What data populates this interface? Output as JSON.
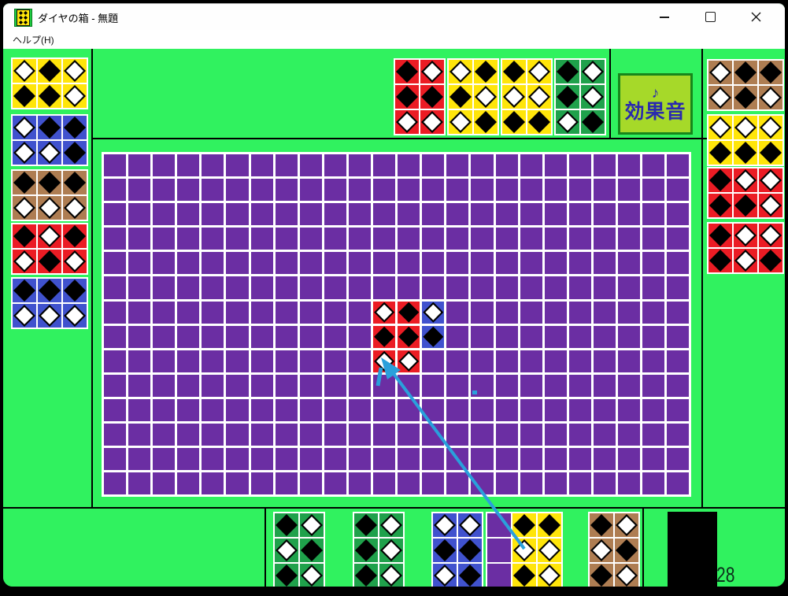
{
  "window": {
    "title": "ダイヤの箱 - 無題",
    "menu_help": "ヘルプ(H)"
  },
  "palette": {
    "background": "#30F25F",
    "board": "#6B2EA3",
    "red": "#EB1C24",
    "yellow": "#FFE50A",
    "blue": "#4052CE",
    "green": "#1FA14B",
    "brown": "#AE7D52",
    "grid_line": "#FFFFFF",
    "drag_arrow": "#2AA0DB"
  },
  "sound_button": {
    "note": "♪",
    "label": "効果音"
  },
  "score": {
    "value": "28"
  },
  "top_panel": {
    "tiles": [
      {
        "color": "red",
        "rows": [
          "bw",
          "bb",
          "ww"
        ]
      },
      {
        "color": "yellow",
        "rows": [
          "wb",
          "bw",
          "wb"
        ]
      },
      {
        "color": "yellow",
        "rows": [
          "bw",
          "ww",
          "bb"
        ]
      },
      {
        "color": "green",
        "rows": [
          "bw",
          "bw",
          "wb"
        ]
      }
    ]
  },
  "left_panel": {
    "tiles": [
      {
        "color": "yellow",
        "rows": [
          "wbw",
          "bbw"
        ]
      },
      {
        "color": "blue",
        "rows": [
          "wbb",
          "wwb"
        ]
      },
      {
        "color": "brown",
        "rows": [
          "bbb",
          "www"
        ]
      },
      {
        "color": "red",
        "rows": [
          "bwb",
          "wbw"
        ]
      },
      {
        "color": "blue",
        "rows": [
          "bbb",
          "www"
        ]
      }
    ]
  },
  "right_panel": {
    "tiles": [
      {
        "color": "brown",
        "rows": [
          "wbb",
          "wbw"
        ]
      },
      {
        "color": "yellow",
        "rows": [
          "www",
          "bbb"
        ]
      },
      {
        "color": "red",
        "rows": [
          "bww",
          "bbw"
        ]
      },
      {
        "color": "red",
        "rows": [
          "bww",
          "bwb"
        ]
      }
    ]
  },
  "tray": {
    "slots": [
      {
        "color": "green",
        "rows": [
          "bw",
          "wb",
          "bw"
        ]
      },
      {
        "color": "green",
        "rows": [
          "bw",
          "bw",
          "bw"
        ]
      },
      {
        "color": "blue",
        "rows": [
          "ww",
          "bb",
          "wb"
        ]
      },
      {
        "color": "yellow",
        "rows": [
          "pbb",
          "pww",
          "pbw"
        ]
      },
      {
        "color": "brown",
        "rows": [
          "bw",
          "wb",
          "bw"
        ]
      }
    ]
  },
  "board": {
    "cols": 24,
    "rows": 14,
    "pieces": [
      {
        "color": "red",
        "col": 11,
        "row": 6,
        "rows": [
          "wb",
          "bb",
          "ww"
        ]
      },
      {
        "color": "blue",
        "col": 13,
        "row": 6,
        "rows": [
          "w",
          "b"
        ]
      }
    ]
  }
}
